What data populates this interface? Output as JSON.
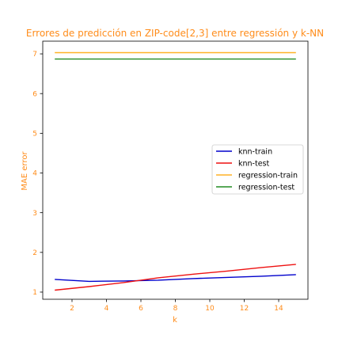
{
  "chart_data": {
    "type": "line",
    "title": "Errores de predicción en ZIP-code[2,3] entre regressión y k-NN",
    "xlabel": "k",
    "ylabel": "MAE error",
    "xlim": [
      0.3,
      15.7
    ],
    "ylim": [
      0.82,
      7.32
    ],
    "x_ticks": [
      2,
      4,
      6,
      8,
      10,
      12,
      14
    ],
    "y_ticks": [
      1,
      2,
      3,
      4,
      5,
      6,
      7
    ],
    "grid": false,
    "legend_position": "center-right",
    "label_color": "#ff8c1a",
    "x": [
      1,
      3,
      5,
      7,
      9,
      11,
      13,
      15
    ],
    "series": [
      {
        "name": "knn-train",
        "color": "#0000cc",
        "values": [
          1.32,
          1.27,
          1.28,
          1.3,
          1.34,
          1.37,
          1.4,
          1.44
        ]
      },
      {
        "name": "knn-test",
        "color": "#ee1111",
        "values": [
          1.05,
          1.14,
          1.24,
          1.36,
          1.45,
          1.53,
          1.62,
          1.7
        ]
      },
      {
        "name": "regression-train",
        "color": "#ffb226",
        "values": [
          7.03,
          7.03,
          7.03,
          7.03,
          7.03,
          7.03,
          7.03,
          7.03
        ]
      },
      {
        "name": "regression-test",
        "color": "#228b22",
        "values": [
          6.87,
          6.87,
          6.87,
          6.87,
          6.87,
          6.87,
          6.87,
          6.87
        ]
      }
    ]
  }
}
